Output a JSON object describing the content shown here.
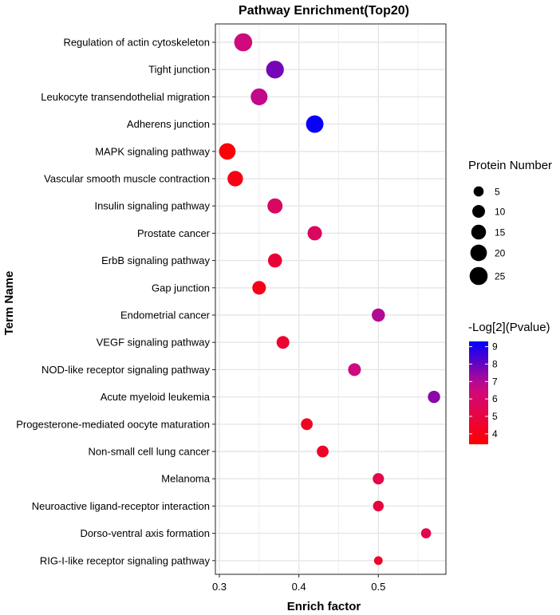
{
  "chart_data": {
    "type": "scatter",
    "title": "Pathway Enrichment(Top20)",
    "xlabel": "Enrich factor",
    "ylabel": "Term Name",
    "xlim": [
      0.295,
      0.585
    ],
    "xticks": [
      0.3,
      0.4,
      0.5
    ],
    "xtick_labels": [
      "0.3",
      "0.4",
      "0.5"
    ],
    "grid": true,
    "terms": [
      {
        "name": "Regulation of actin cytoskeleton",
        "x": 0.33,
        "size": 25,
        "pvalue": 6.5
      },
      {
        "name": "Tight junction",
        "x": 0.37,
        "size": 24,
        "pvalue": 7.8
      },
      {
        "name": "Leukocyte transendothelial migration",
        "x": 0.35,
        "size": 21,
        "pvalue": 6.8
      },
      {
        "name": "Adherens junction",
        "x": 0.42,
        "size": 23,
        "pvalue": 9.2
      },
      {
        "name": "MAPK signaling pathway",
        "x": 0.31,
        "size": 20,
        "pvalue": 3.6
      },
      {
        "name": "Vascular smooth muscle contraction",
        "x": 0.32,
        "size": 17,
        "pvalue": 3.9
      },
      {
        "name": "Insulin signaling pathway",
        "x": 0.37,
        "size": 16,
        "pvalue": 5.8
      },
      {
        "name": "Prostate cancer",
        "x": 0.42,
        "size": 14,
        "pvalue": 5.8
      },
      {
        "name": "ErbB signaling pathway",
        "x": 0.37,
        "size": 13,
        "pvalue": 4.8
      },
      {
        "name": "Gap junction",
        "x": 0.35,
        "size": 12,
        "pvalue": 4.0
      },
      {
        "name": "Endometrial cancer",
        "x": 0.5,
        "size": 11,
        "pvalue": 7.0
      },
      {
        "name": "VEGF signaling pathway",
        "x": 0.38,
        "size": 10,
        "pvalue": 4.6
      },
      {
        "name": "NOD-like receptor signaling pathway",
        "x": 0.47,
        "size": 10,
        "pvalue": 6.6
      },
      {
        "name": "Acute myeloid leukemia",
        "x": 0.57,
        "size": 9,
        "pvalue": 7.5
      },
      {
        "name": "Progesterone-mediated oocyte maturation",
        "x": 0.41,
        "size": 8,
        "pvalue": 4.3
      },
      {
        "name": "Non-small cell lung cancer",
        "x": 0.43,
        "size": 8,
        "pvalue": 4.4
      },
      {
        "name": "Melanoma",
        "x": 0.5,
        "size": 7,
        "pvalue": 5.2
      },
      {
        "name": "Neuroactive ligand-receptor interaction",
        "x": 0.5,
        "size": 6,
        "pvalue": 5.0
      },
      {
        "name": "Dorso-ventral axis formation",
        "x": 0.56,
        "size": 5,
        "pvalue": 5.3
      },
      {
        "name": "RIG-I-like receptor signaling pathway",
        "x": 0.5,
        "size": 3,
        "pvalue": 4.5
      }
    ],
    "size_legend": {
      "title": "Protein Number",
      "values": [
        5,
        10,
        15,
        20,
        25
      ],
      "labels": [
        "5",
        "10",
        "15",
        "20",
        "25"
      ]
    },
    "color_legend": {
      "title": "-Log[2](Pvalue)",
      "min": 3.4,
      "max": 9.3,
      "ticks": [
        4,
        5,
        6,
        7,
        8,
        9
      ],
      "tick_labels": [
        "4",
        "5",
        "6",
        "7",
        "8",
        "9"
      ],
      "low_color": "#ff0000",
      "high_color": "#0000ff"
    }
  }
}
